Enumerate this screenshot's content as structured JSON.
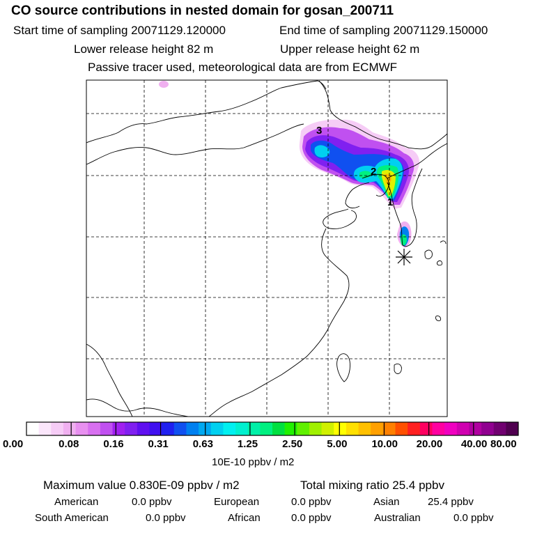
{
  "header": {
    "title": "CO  source contributions in nested domain for gosan_200711",
    "start_label": "Start time of sampling 20071129.120000",
    "end_label": "End time of sampling 20071129.150000",
    "lower_label": "Lower release height   82 m",
    "upper_label": "Upper release height   62 m",
    "tracer_label": "Passive tracer used, meteorological data are from ECMWF"
  },
  "chart_data": {
    "type": "heatmap",
    "title": "CO  source contributions in nested domain for gosan_200711",
    "colorbar": {
      "tick_labels": [
        "0.00",
        "0.08",
        "0.16",
        "0.31",
        "0.63",
        "1.25",
        "2.50",
        "5.00",
        "10.00",
        "20.00",
        "40.00",
        "80.00"
      ],
      "unit_label": "10E-10 ppbv / m2",
      "colors": [
        "#ffffff",
        "#fbe6fb",
        "#f6ccf6",
        "#f0b0f0",
        "#e890f0",
        "#d870f0",
        "#c050f0",
        "#a020f0",
        "#8020f0",
        "#6010f0",
        "#4010f0",
        "#2020f0",
        "#1050f0",
        "#0080f0",
        "#00a8f0",
        "#00d0f0",
        "#00f0f0",
        "#00f0d0",
        "#00f0a8",
        "#00f080",
        "#00e040",
        "#20f000",
        "#60f000",
        "#a0f000",
        "#d0f000",
        "#ffff00",
        "#ffe000",
        "#ffc000",
        "#ffa000",
        "#ff8000",
        "#ff5000",
        "#ff2020",
        "#ff0060",
        "#ff00a0",
        "#f000c0",
        "#d000b0",
        "#b000a0",
        "#900090",
        "#700070",
        "#500050"
      ]
    },
    "markers": [
      "3",
      "2",
      "1"
    ],
    "receptor": "gosan"
  },
  "footer": {
    "max_label": "Maximum value  0.830E-09 ppbv / m2",
    "total_label": "Total mixing ratio       25.4 ppbv",
    "regions": [
      {
        "name": "American",
        "value": "0.0 ppbv"
      },
      {
        "name": "European",
        "value": "0.0 ppbv"
      },
      {
        "name": "Asian",
        "value": "25.4 ppbv"
      },
      {
        "name": "South American",
        "value": "0.0 ppbv"
      },
      {
        "name": "African",
        "value": "0.0 ppbv"
      },
      {
        "name": "Australian",
        "value": "0.0 ppbv"
      }
    ]
  }
}
